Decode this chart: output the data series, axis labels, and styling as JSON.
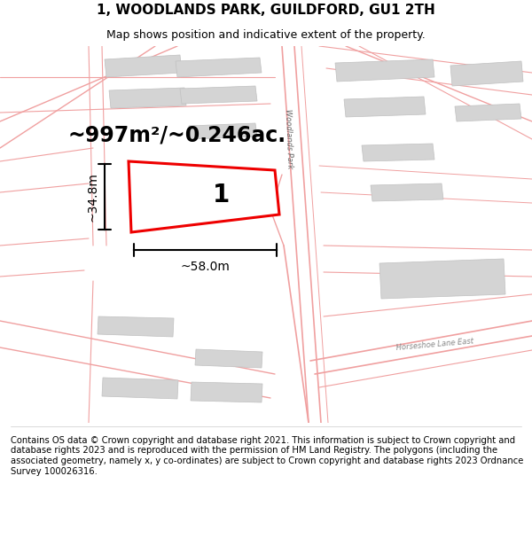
{
  "title": "1, WOODLANDS PARK, GUILDFORD, GU1 2TH",
  "subtitle": "Map shows position and indicative extent of the property.",
  "area_text": "~997m²/~0.246ac.",
  "width_text": "~58.0m",
  "height_text": "~34.8m",
  "label": "1",
  "footer": "Contains OS data © Crown copyright and database right 2021. This information is subject to Crown copyright and database rights 2023 and is reproduced with the permission of HM Land Registry. The polygons (including the associated geometry, namely x, y co-ordinates) are subject to Crown copyright and database rights 2023 Ordnance Survey 100026316.",
  "bg_color": "#ffffff",
  "map_bg": "#f7f5f5",
  "road_color": "#f0a0a0",
  "building_fill": "#d4d4d4",
  "building_edge": "#c0c0c0",
  "highlight_color": "#ee0000",
  "title_fontsize": 11,
  "subtitle_fontsize": 9,
  "area_fontsize": 17,
  "dim_fontsize": 10,
  "footer_fontsize": 7.2,
  "road_lw": 1.0,
  "road_lw2": 0.7
}
